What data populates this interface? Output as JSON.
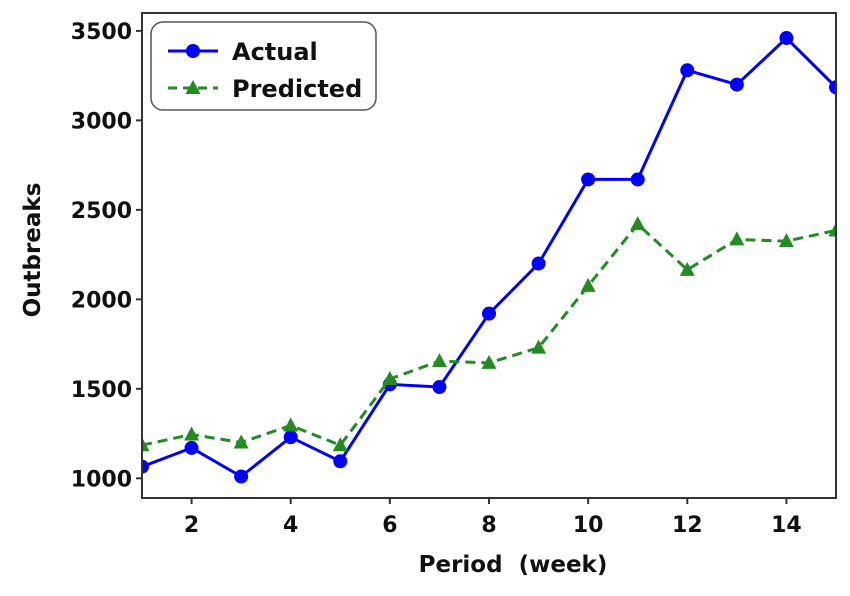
{
  "chart_data": {
    "type": "line",
    "xlabel": "Period  (week)",
    "ylabel": "Outbreaks",
    "xlim": [
      1,
      15
    ],
    "ylim": [
      890,
      3600
    ],
    "xticks": [
      2,
      4,
      6,
      8,
      10,
      12,
      14
    ],
    "yticks": [
      1000,
      1500,
      2000,
      2500,
      3000,
      3500
    ],
    "grid": false,
    "legend_position": "top-left",
    "x": [
      1,
      2,
      3,
      4,
      5,
      6,
      7,
      8,
      9,
      10,
      11,
      12,
      13,
      14,
      15
    ],
    "series": [
      {
        "name": "Actual",
        "color": "#0000ff",
        "marker": "circle",
        "line_style": "solid",
        "values": [
          1065,
          1170,
          1010,
          1230,
          1095,
          1525,
          1510,
          1920,
          2200,
          2670,
          2670,
          3280,
          3200,
          3460,
          3185
        ]
      },
      {
        "name": "Predicted",
        "color": "#228b22",
        "marker": "triangle",
        "line_style": "dashed",
        "values": [
          1185,
          1245,
          1200,
          1295,
          1185,
          1555,
          1655,
          1645,
          1730,
          2075,
          2420,
          2165,
          2335,
          2325,
          2385
        ]
      }
    ]
  }
}
